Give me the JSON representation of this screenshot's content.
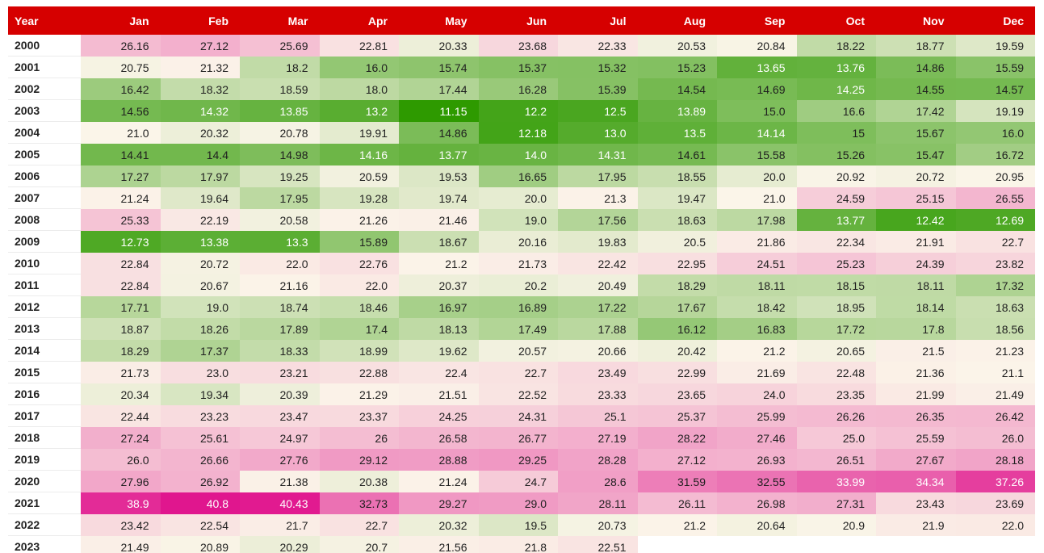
{
  "chart_data": {
    "type": "heatmap",
    "columns": [
      "Year",
      "Jan",
      "Feb",
      "Mar",
      "Apr",
      "May",
      "Jun",
      "Jul",
      "Aug",
      "Sep",
      "Oct",
      "Nov",
      "Dec"
    ],
    "rows": [
      {
        "year": "2000",
        "values": [
          "26.16",
          "27.12",
          "25.69",
          "22.81",
          "20.33",
          "23.68",
          "22.33",
          "20.53",
          "20.84",
          "18.22",
          "18.77",
          "19.59"
        ]
      },
      {
        "year": "2001",
        "values": [
          "20.75",
          "21.32",
          "18.2",
          "16.0",
          "15.74",
          "15.37",
          "15.32",
          "15.23",
          "13.65",
          "13.76",
          "14.86",
          "15.59"
        ]
      },
      {
        "year": "2002",
        "values": [
          "16.42",
          "18.32",
          "18.59",
          "18.0",
          "17.44",
          "16.28",
          "15.39",
          "14.54",
          "14.69",
          "14.25",
          "14.55",
          "14.57"
        ]
      },
      {
        "year": "2003",
        "values": [
          "14.56",
          "14.32",
          "13.85",
          "13.2",
          "11.15",
          "12.2",
          "12.5",
          "13.89",
          "15.0",
          "16.6",
          "17.42",
          "19.19"
        ]
      },
      {
        "year": "2004",
        "values": [
          "21.0",
          "20.32",
          "20.78",
          "19.91",
          "14.86",
          "12.18",
          "13.0",
          "13.5",
          "14.14",
          "15",
          "15.67",
          "16.0"
        ]
      },
      {
        "year": "2005",
        "values": [
          "14.41",
          "14.4",
          "14.98",
          "14.16",
          "13.77",
          "14.0",
          "14.31",
          "14.61",
          "15.58",
          "15.26",
          "15.47",
          "16.72"
        ]
      },
      {
        "year": "2006",
        "values": [
          "17.27",
          "17.97",
          "19.25",
          "20.59",
          "19.53",
          "16.65",
          "17.95",
          "18.55",
          "20.0",
          "20.92",
          "20.72",
          "20.95"
        ]
      },
      {
        "year": "2007",
        "values": [
          "21.24",
          "19.64",
          "17.95",
          "19.28",
          "19.74",
          "20.0",
          "21.3",
          "19.47",
          "21.0",
          "24.59",
          "25.15",
          "26.55"
        ]
      },
      {
        "year": "2008",
        "values": [
          "25.33",
          "22.19",
          "20.58",
          "21.26",
          "21.46",
          "19.0",
          "17.56",
          "18.63",
          "17.98",
          "13.77",
          "12.42",
          "12.69"
        ]
      },
      {
        "year": "2009",
        "values": [
          "12.73",
          "13.38",
          "13.3",
          "15.89",
          "18.67",
          "20.16",
          "19.83",
          "20.5",
          "21.86",
          "22.34",
          "21.91",
          "22.7"
        ]
      },
      {
        "year": "2010",
        "values": [
          "22.84",
          "20.72",
          "22.0",
          "22.76",
          "21.2",
          "21.73",
          "22.42",
          "22.95",
          "24.51",
          "25.23",
          "24.39",
          "23.82"
        ]
      },
      {
        "year": "2011",
        "values": [
          "22.84",
          "20.67",
          "21.16",
          "22.0",
          "20.37",
          "20.2",
          "20.49",
          "18.29",
          "18.11",
          "18.15",
          "18.11",
          "17.32"
        ]
      },
      {
        "year": "2012",
        "values": [
          "17.71",
          "19.0",
          "18.74",
          "18.46",
          "16.97",
          "16.89",
          "17.22",
          "17.67",
          "18.42",
          "18.95",
          "18.14",
          "18.63"
        ]
      },
      {
        "year": "2013",
        "values": [
          "18.87",
          "18.26",
          "17.89",
          "17.4",
          "18.13",
          "17.49",
          "17.88",
          "16.12",
          "16.83",
          "17.72",
          "17.8",
          "18.56"
        ]
      },
      {
        "year": "2014",
        "values": [
          "18.29",
          "17.37",
          "18.33",
          "18.99",
          "19.62",
          "20.57",
          "20.66",
          "20.42",
          "21.2",
          "20.65",
          "21.5",
          "21.23"
        ]
      },
      {
        "year": "2015",
        "values": [
          "21.73",
          "23.0",
          "23.21",
          "22.88",
          "22.4",
          "22.7",
          "23.49",
          "22.99",
          "21.69",
          "22.48",
          "21.36",
          "21.1"
        ]
      },
      {
        "year": "2016",
        "values": [
          "20.34",
          "19.34",
          "20.39",
          "21.29",
          "21.51",
          "22.52",
          "23.33",
          "23.65",
          "24.0",
          "23.35",
          "21.99",
          "21.49"
        ]
      },
      {
        "year": "2017",
        "values": [
          "22.44",
          "23.23",
          "23.47",
          "23.37",
          "24.25",
          "24.31",
          "25.1",
          "25.37",
          "25.99",
          "26.26",
          "26.35",
          "26.42"
        ]
      },
      {
        "year": "2018",
        "values": [
          "27.24",
          "25.61",
          "24.97",
          "26",
          "26.58",
          "26.77",
          "27.19",
          "28.22",
          "27.46",
          "25.0",
          "25.59",
          "26.0"
        ]
      },
      {
        "year": "2019",
        "values": [
          "26.0",
          "26.66",
          "27.76",
          "29.12",
          "28.88",
          "29.25",
          "28.28",
          "27.12",
          "26.93",
          "26.51",
          "27.67",
          "28.18"
        ]
      },
      {
        "year": "2020",
        "values": [
          "27.96",
          "26.92",
          "21.38",
          "20.38",
          "21.24",
          "24.7",
          "28.6",
          "31.59",
          "32.55",
          "33.99",
          "34.34",
          "37.26"
        ]
      },
      {
        "year": "2021",
        "values": [
          "38.9",
          "40.8",
          "40.43",
          "32.73",
          "29.27",
          "29.0",
          "28.11",
          "26.11",
          "26.98",
          "27.31",
          "23.43",
          "23.69"
        ]
      },
      {
        "year": "2022",
        "values": [
          "23.42",
          "22.54",
          "21.7",
          "22.7",
          "20.32",
          "19.5",
          "20.73",
          "21.2",
          "20.64",
          "20.9",
          "21.9",
          "22.0"
        ]
      },
      {
        "year": "2023",
        "values": [
          "21.49",
          "20.89",
          "20.29",
          "20.7",
          "21.56",
          "21.8",
          "22.51"
        ]
      }
    ],
    "color_scale": {
      "low": "#2e9a00",
      "mid": "#fbf5e9",
      "high": "#e0168e",
      "midpoint": 21
    },
    "header_color": "#d60000"
  }
}
